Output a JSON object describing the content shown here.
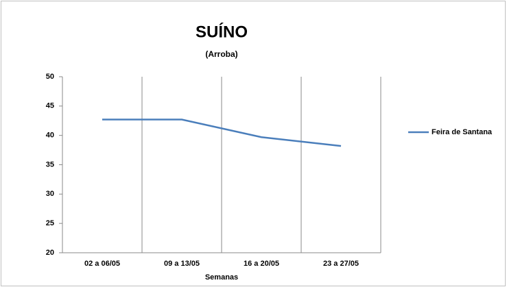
{
  "chart_data": {
    "type": "line",
    "title": "SUÍNO",
    "subtitle": "(Arroba)",
    "x_label": "Semanas",
    "categories": [
      "02 a 06/05",
      "09 a 13/05",
      "16 a 20/05",
      "23 a 27/05"
    ],
    "series": [
      {
        "name": "Feira de Santana",
        "color": "#4a7ebb",
        "values": [
          42.7,
          42.7,
          39.7,
          38.2
        ]
      }
    ],
    "ylim": [
      20,
      50
    ],
    "yticks": [
      20,
      25,
      30,
      35,
      40,
      45,
      50
    ],
    "legend": "right"
  }
}
